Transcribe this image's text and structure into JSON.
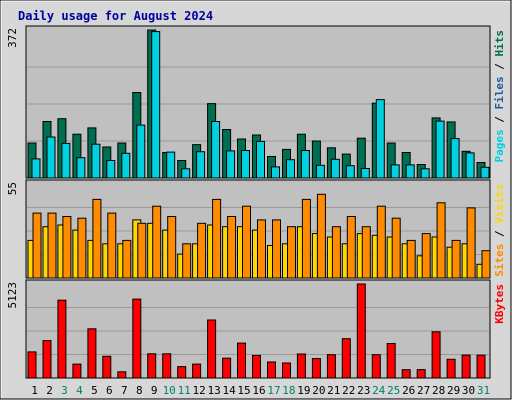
{
  "chart_data": {
    "type": "bar",
    "title": "Daily usage for August 2024",
    "categories": [
      "1",
      "2",
      "3",
      "4",
      "5",
      "6",
      "7",
      "8",
      "9",
      "10",
      "11",
      "12",
      "13",
      "14",
      "15",
      "16",
      "17",
      "18",
      "19",
      "20",
      "21",
      "22",
      "23",
      "24",
      "25",
      "26",
      "27",
      "28",
      "29",
      "30",
      "31"
    ],
    "weekend_days": [
      "3",
      "4",
      "10",
      "11",
      "17",
      "18",
      "24",
      "25",
      "31"
    ],
    "colors": {
      "title": "#0000a0",
      "weekday_label": "#000000",
      "weekend_label": "#00806e",
      "hits": "#00d0e0",
      "files": "#006e50",
      "pages": "#1e5aa0",
      "visits": "#ffd700",
      "sites": "#ff8c00",
      "kbytes": "#ff0000",
      "plot_bg": "#c0c0c0",
      "frame_bg": "#d7d7d7"
    },
    "panels": [
      {
        "name": "hits-files-pages",
        "ymax_label": "372",
        "ymax": 372,
        "legend": [
          {
            "text": "Pages",
            "color_key": "hits"
          },
          {
            "text": " / ",
            "color_key": "weekday_label"
          },
          {
            "text": "Files",
            "color_key": "pages"
          },
          {
            "text": " / ",
            "color_key": "weekday_label"
          },
          {
            "text": "Hits",
            "color_key": "files"
          }
        ],
        "series": [
          {
            "name": "Hits",
            "color_key": "files",
            "values": [
              88,
              142,
              149,
              110,
              126,
              78,
              88,
              215,
              372,
              64,
              44,
              84,
              187,
              122,
              98,
              108,
              54,
              72,
              110,
              93,
              76,
              60,
              100,
              188,
              88,
              64,
              34,
              151,
              141,
              67,
              39
            ]
          },
          {
            "name": "Files",
            "color_key": "hits",
            "values": [
              48,
              103,
              87,
              51,
              85,
              44,
              62,
              133,
              368,
              65,
              23,
              66,
              142,
              68,
              69,
              92,
              28,
              46,
              69,
              32,
              47,
              31,
              24,
              197,
              33,
              33,
              23,
              143,
              99,
              63,
              27
            ]
          },
          {
            "name": "Pages",
            "color_key": "pages",
            "values": [
              0,
              0,
              0,
              0,
              0,
              0,
              0,
              0,
              0,
              0,
              0,
              0,
              0,
              0,
              0,
              0,
              0,
              0,
              0,
              0,
              0,
              0,
              0,
              0,
              0,
              0,
              0,
              0,
              0,
              0,
              0
            ]
          }
        ]
      },
      {
        "name": "visits-sites",
        "ymax_label": "55",
        "ymax": 55,
        "legend": [
          {
            "text": "Sites",
            "color_key": "sites"
          },
          {
            "text": " / ",
            "color_key": "weekday_label"
          },
          {
            "text": "Visits",
            "color_key": "visits"
          }
        ],
        "series": [
          {
            "name": "Visits",
            "color_key": "visits",
            "values": [
              22,
              30,
              31,
              28,
              22,
              20,
              20,
              34,
              32,
              28,
              14,
              20,
              31,
              30,
              30,
              28,
              19,
              20,
              30,
              26,
              24,
              20,
              26,
              25,
              24,
              20,
              13,
              24,
              18,
              20,
              8
            ]
          },
          {
            "name": "Sites",
            "color_key": "sites",
            "values": [
              38,
              38,
              36,
              35,
              46,
              38,
              22,
              32,
              42,
              36,
              20,
              32,
              46,
              36,
              42,
              34,
              34,
              30,
              46,
              49,
              30,
              36,
              30,
              42,
              35,
              22,
              26,
              44,
              22,
              41,
              16
            ]
          }
        ]
      },
      {
        "name": "kbytes",
        "ymax_label": "5123",
        "ymax": 5123,
        "legend": [
          {
            "text": "KBytes",
            "color_key": "kbytes"
          }
        ],
        "series": [
          {
            "name": "KBytes",
            "color_key": "kbytes",
            "values": [
              1420,
              2040,
              4240,
              760,
              2680,
              1180,
              340,
              4300,
              1320,
              1320,
              620,
              760,
              3160,
              1080,
              1900,
              1230,
              870,
              820,
              1310,
              1060,
              1270,
              2140,
              5123,
              1270,
              1880,
              450,
              460,
              2520,
              1020,
              1250,
              1240
            ]
          }
        ]
      }
    ]
  }
}
